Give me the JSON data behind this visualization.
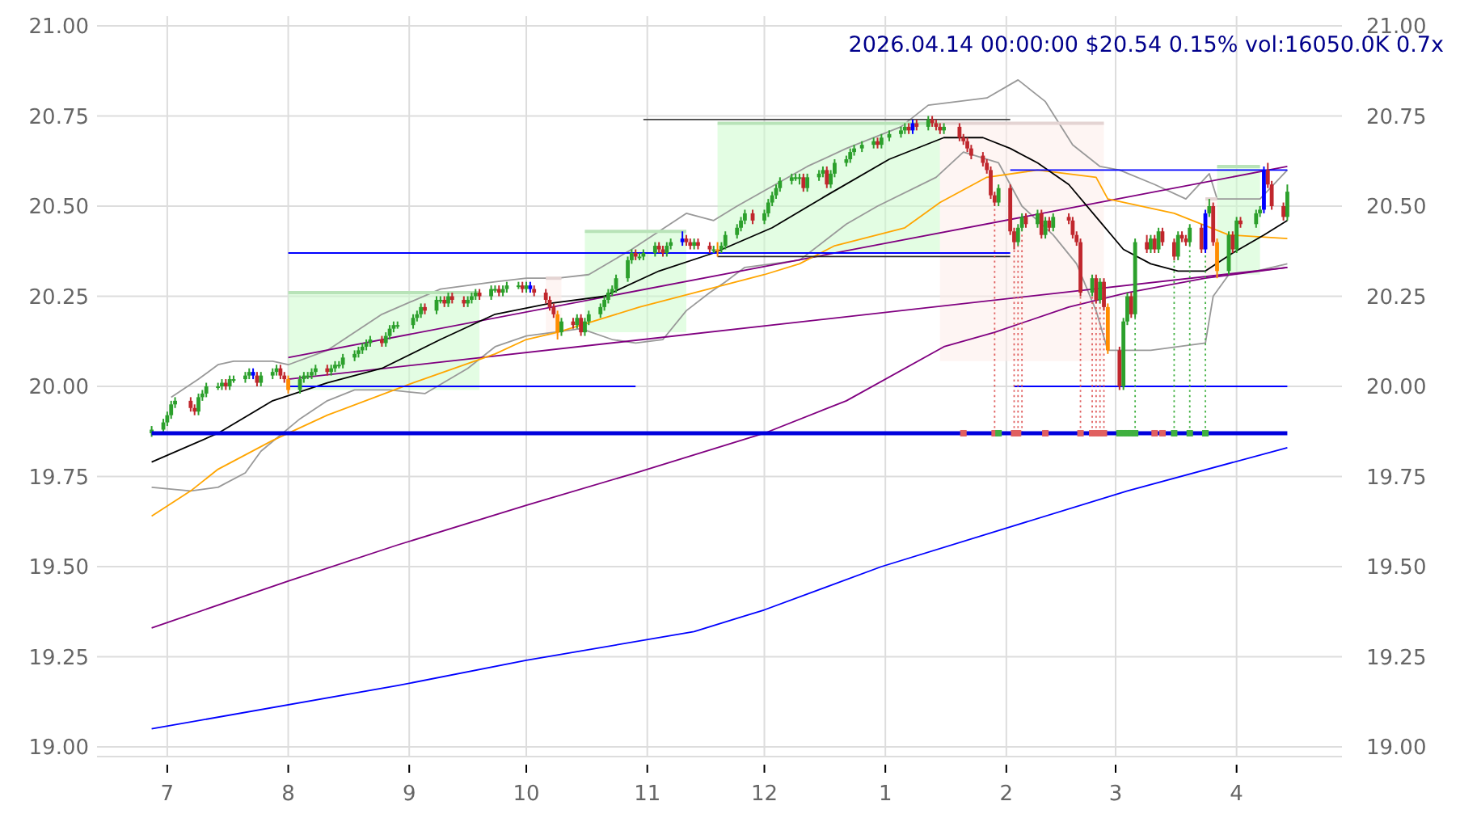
{
  "chart_data": {
    "type": "candlestick",
    "title": "2026.04.14 00:00:00 $20.54 0.15% vol:16050.0K 0.7x",
    "x": [
      "2025-06-27",
      "2025-06-30",
      "2025-07-01",
      "2025-07-02",
      "2025-07-03",
      "2025-07-07",
      "2025-07-08",
      "2025-07-09",
      "2025-07-10",
      "2025-07-11",
      "2025-07-14",
      "2025-07-15",
      "2025-07-16",
      "2025-07-17",
      "2025-07-18",
      "2025-07-21",
      "2025-07-22",
      "2025-07-23",
      "2025-07-24",
      "2025-07-25",
      "2025-07-28",
      "2025-07-29",
      "2025-07-30",
      "2025-07-31",
      "2025-08-01",
      "2025-08-04",
      "2025-08-05",
      "2025-08-06",
      "2025-08-07",
      "2025-08-08",
      "2025-08-11",
      "2025-08-12",
      "2025-08-13",
      "2025-08-14",
      "2025-08-15",
      "2025-08-18",
      "2025-08-19",
      "2025-08-20",
      "2025-08-21",
      "2025-08-22",
      "2025-08-25",
      "2025-08-26",
      "2025-08-27",
      "2025-08-28",
      "2025-08-29",
      "2025-09-02",
      "2025-09-03",
      "2025-09-04",
      "2025-09-05",
      "2025-09-08",
      "2025-09-09",
      "2025-09-10",
      "2025-09-11",
      "2025-09-12",
      "2025-09-15",
      "2025-09-16",
      "2025-09-17",
      "2025-09-18",
      "2025-09-19",
      "2025-09-22",
      "2025-09-23",
      "2025-09-24",
      "2025-09-25",
      "2025-09-26",
      "2025-09-29",
      "2025-09-30",
      "2025-10-01",
      "2025-10-02",
      "2025-10-03",
      "2025-10-06",
      "2025-10-07",
      "2025-10-08",
      "2025-10-09",
      "2025-10-10",
      "2025-10-13",
      "2025-10-14",
      "2025-10-15",
      "2025-10-16",
      "2025-10-17",
      "2025-10-20",
      "2025-10-21",
      "2025-10-22",
      "2025-10-23",
      "2025-10-24",
      "2025-10-27",
      "2025-10-28",
      "2025-10-29",
      "2025-10-30",
      "2025-10-31",
      "2025-11-03",
      "2025-11-04",
      "2025-11-05",
      "2025-11-06",
      "2025-11-07",
      "2025-11-10",
      "2025-11-11",
      "2025-11-12",
      "2025-11-13",
      "2025-11-14",
      "2025-11-17",
      "2025-11-18",
      "2025-11-19",
      "2025-11-20",
      "2025-11-21",
      "2025-11-24",
      "2025-11-25",
      "2025-11-26",
      "2025-11-28",
      "2025-12-01",
      "2025-12-02",
      "2025-12-03",
      "2025-12-04",
      "2025-12-05",
      "2025-12-08",
      "2025-12-09",
      "2025-12-10",
      "2025-12-11",
      "2025-12-12",
      "2025-12-15",
      "2025-12-16",
      "2025-12-17",
      "2025-12-18",
      "2025-12-19",
      "2025-12-22",
      "2025-12-23",
      "2025-12-24",
      "2025-12-26",
      "2025-12-29",
      "2025-12-30",
      "2025-12-31",
      "2026-01-02",
      "2026-01-05",
      "2026-01-06",
      "2026-01-07",
      "2026-01-08",
      "2026-01-09",
      "2026-01-12",
      "2026-01-13",
      "2026-01-14",
      "2026-01-15",
      "2026-01-16",
      "2026-01-20",
      "2026-01-21",
      "2026-01-22",
      "2026-01-23",
      "2026-01-26",
      "2026-01-27",
      "2026-01-28",
      "2026-01-29",
      "2026-01-30",
      "2026-02-02",
      "2026-02-03",
      "2026-02-04",
      "2026-02-05",
      "2026-02-06",
      "2026-02-09",
      "2026-02-10",
      "2026-02-11",
      "2026-02-12",
      "2026-02-13",
      "2026-02-17",
      "2026-02-18",
      "2026-02-19",
      "2026-02-20",
      "2026-02-23",
      "2026-02-24",
      "2026-02-25",
      "2026-02-26",
      "2026-02-27",
      "2026-03-02",
      "2026-03-03",
      "2026-03-04",
      "2026-03-05",
      "2026-03-06",
      "2026-03-09",
      "2026-03-10",
      "2026-03-11",
      "2026-03-12",
      "2026-03-13",
      "2026-03-16",
      "2026-03-17",
      "2026-03-18",
      "2026-03-19",
      "2026-03-20",
      "2026-03-23",
      "2026-03-24",
      "2026-03-25",
      "2026-03-26",
      "2026-03-27",
      "2026-03-30",
      "2026-03-31",
      "2026-04-01",
      "2026-04-02",
      "2026-04-06",
      "2026-04-07",
      "2026-04-08",
      "2026-04-09",
      "2026-04-10",
      "2026-04-13",
      "2026-04-14"
    ],
    "ohlc": [
      [
        19.87,
        19.89,
        19.86,
        19.88
      ],
      [
        19.88,
        19.91,
        19.87,
        19.9
      ],
      [
        19.9,
        19.93,
        19.89,
        19.92
      ],
      [
        19.92,
        19.96,
        19.91,
        19.95
      ],
      [
        19.95,
        19.97,
        19.94,
        19.96
      ],
      [
        19.96,
        19.97,
        19.93,
        19.94
      ],
      [
        19.94,
        19.95,
        19.92,
        19.93
      ],
      [
        19.93,
        19.98,
        19.92,
        19.97
      ],
      [
        19.97,
        19.99,
        19.96,
        19.98
      ],
      [
        19.98,
        20.01,
        19.97,
        20.0
      ],
      [
        20.0,
        20.01,
        19.99,
        20.0
      ],
      [
        20.0,
        20.02,
        19.99,
        20.01
      ],
      [
        20.01,
        20.02,
        19.99,
        20.0
      ],
      [
        20.0,
        20.03,
        19.99,
        20.02
      ],
      [
        20.02,
        20.03,
        20.01,
        20.02
      ],
      [
        20.02,
        20.04,
        20.01,
        20.03
      ],
      [
        20.03,
        20.05,
        20.02,
        20.04
      ],
      [
        20.04,
        20.05,
        20.02,
        20.03
      ],
      [
        20.03,
        20.04,
        20.0,
        20.01
      ],
      [
        20.01,
        20.04,
        20.0,
        20.03
      ],
      [
        20.03,
        20.05,
        20.02,
        20.04
      ],
      [
        20.04,
        20.06,
        20.03,
        20.05
      ],
      [
        20.05,
        20.06,
        20.02,
        20.03
      ],
      [
        20.03,
        20.04,
        20.01,
        20.02
      ],
      [
        20.02,
        20.03,
        19.98,
        19.99
      ],
      [
        19.99,
        20.03,
        19.98,
        20.02
      ],
      [
        20.02,
        20.04,
        20.01,
        20.03
      ],
      [
        20.03,
        20.04,
        20.02,
        20.03
      ],
      [
        20.03,
        20.05,
        20.02,
        20.04
      ],
      [
        20.04,
        20.06,
        20.03,
        20.05
      ],
      [
        20.05,
        20.06,
        20.03,
        20.04
      ],
      [
        20.04,
        20.06,
        20.03,
        20.05
      ],
      [
        20.05,
        20.07,
        20.04,
        20.06
      ],
      [
        20.06,
        20.07,
        20.05,
        20.06
      ],
      [
        20.06,
        20.09,
        20.05,
        20.08
      ],
      [
        20.08,
        20.1,
        20.07,
        20.09
      ],
      [
        20.09,
        20.11,
        20.08,
        20.1
      ],
      [
        20.1,
        20.12,
        20.09,
        20.11
      ],
      [
        20.11,
        20.13,
        20.1,
        20.12
      ],
      [
        20.12,
        20.14,
        20.11,
        20.13
      ],
      [
        20.13,
        20.14,
        20.11,
        20.12
      ],
      [
        20.12,
        20.15,
        20.11,
        20.14
      ],
      [
        20.14,
        20.17,
        20.13,
        20.16
      ],
      [
        20.16,
        20.18,
        20.15,
        20.17
      ],
      [
        20.17,
        20.18,
        20.16,
        20.17
      ],
      [
        20.17,
        20.2,
        20.16,
        20.19
      ],
      [
        20.19,
        20.21,
        20.18,
        20.2
      ],
      [
        20.2,
        20.23,
        20.19,
        20.22
      ],
      [
        20.22,
        20.23,
        20.2,
        20.21
      ],
      [
        20.21,
        20.25,
        20.2,
        20.24
      ],
      [
        20.24,
        20.25,
        20.23,
        20.24
      ],
      [
        20.24,
        20.25,
        20.22,
        20.23
      ],
      [
        20.23,
        20.26,
        20.22,
        20.25
      ],
      [
        20.25,
        20.26,
        20.23,
        20.24
      ],
      [
        20.24,
        20.25,
        20.22,
        20.23
      ],
      [
        20.23,
        20.25,
        20.22,
        20.24
      ],
      [
        20.24,
        20.26,
        20.23,
        20.25
      ],
      [
        20.25,
        20.27,
        20.24,
        20.26
      ],
      [
        20.26,
        20.27,
        20.24,
        20.25
      ],
      [
        20.25,
        20.28,
        20.24,
        20.27
      ],
      [
        20.27,
        20.28,
        20.26,
        20.27
      ],
      [
        20.27,
        20.28,
        20.25,
        20.26
      ],
      [
        20.26,
        20.28,
        20.25,
        20.27
      ],
      [
        20.27,
        20.29,
        20.26,
        20.28
      ],
      [
        20.28,
        20.29,
        20.27,
        20.28
      ],
      [
        20.28,
        20.29,
        20.26,
        20.27
      ],
      [
        20.27,
        20.29,
        20.26,
        20.28
      ],
      [
        20.28,
        20.29,
        20.26,
        20.27
      ],
      [
        20.27,
        20.28,
        20.25,
        20.26
      ],
      [
        20.26,
        20.27,
        20.23,
        20.24
      ],
      [
        20.24,
        20.25,
        20.21,
        20.22
      ],
      [
        20.22,
        20.23,
        20.19,
        20.2
      ],
      [
        20.2,
        20.21,
        20.13,
        20.15
      ],
      [
        20.15,
        20.19,
        20.14,
        20.18
      ],
      [
        20.18,
        20.19,
        20.16,
        20.17
      ],
      [
        20.17,
        20.2,
        20.16,
        20.19
      ],
      [
        20.19,
        20.2,
        20.14,
        20.15
      ],
      [
        20.15,
        20.19,
        20.14,
        20.18
      ],
      [
        20.18,
        20.21,
        20.17,
        20.2
      ],
      [
        20.2,
        20.23,
        20.19,
        20.22
      ],
      [
        20.22,
        20.25,
        20.21,
        20.24
      ],
      [
        20.24,
        20.27,
        20.23,
        20.26
      ],
      [
        20.26,
        20.28,
        20.25,
        20.27
      ],
      [
        20.27,
        20.31,
        20.26,
        20.3
      ],
      [
        20.3,
        20.36,
        20.29,
        20.35
      ],
      [
        20.35,
        20.38,
        20.34,
        20.37
      ],
      [
        20.37,
        20.38,
        20.35,
        20.36
      ],
      [
        20.36,
        20.37,
        20.35,
        20.36
      ],
      [
        20.36,
        20.38,
        20.35,
        20.37
      ],
      [
        20.37,
        20.4,
        20.36,
        20.39
      ],
      [
        20.39,
        20.4,
        20.37,
        20.38
      ],
      [
        20.38,
        20.39,
        20.36,
        20.37
      ],
      [
        20.37,
        20.4,
        20.36,
        20.39
      ],
      [
        20.39,
        20.41,
        20.38,
        20.4
      ],
      [
        20.4,
        20.43,
        20.39,
        20.41
      ],
      [
        20.41,
        20.42,
        20.39,
        20.4
      ],
      [
        20.4,
        20.41,
        20.38,
        20.39
      ],
      [
        20.39,
        20.41,
        20.38,
        20.4
      ],
      [
        20.4,
        20.41,
        20.38,
        20.39
      ],
      [
        20.39,
        20.4,
        20.37,
        20.38
      ],
      [
        20.38,
        20.39,
        20.37,
        20.38
      ],
      [
        20.38,
        20.4,
        20.36,
        20.38
      ],
      [
        20.38,
        20.4,
        20.37,
        20.39
      ],
      [
        20.39,
        20.43,
        20.38,
        20.42
      ],
      [
        20.42,
        20.45,
        20.41,
        20.44
      ],
      [
        20.44,
        20.47,
        20.43,
        20.46
      ],
      [
        20.46,
        20.49,
        20.45,
        20.48
      ],
      [
        20.48,
        20.49,
        20.45,
        20.46
      ],
      [
        20.46,
        20.49,
        20.45,
        20.48
      ],
      [
        20.48,
        20.52,
        20.47,
        20.51
      ],
      [
        20.51,
        20.54,
        20.5,
        20.53
      ],
      [
        20.53,
        20.56,
        20.52,
        20.55
      ],
      [
        20.55,
        20.58,
        20.54,
        20.57
      ],
      [
        20.57,
        20.59,
        20.56,
        20.58
      ],
      [
        20.58,
        20.59,
        20.57,
        20.58
      ],
      [
        20.58,
        20.59,
        20.56,
        20.58
      ],
      [
        20.58,
        20.59,
        20.54,
        20.55
      ],
      [
        20.55,
        20.59,
        20.54,
        20.58
      ],
      [
        20.58,
        20.6,
        20.57,
        20.59
      ],
      [
        20.59,
        20.61,
        20.58,
        20.6
      ],
      [
        20.6,
        20.61,
        20.55,
        20.56
      ],
      [
        20.56,
        20.6,
        20.55,
        20.59
      ],
      [
        20.59,
        20.63,
        20.58,
        20.62
      ],
      [
        20.62,
        20.64,
        20.61,
        20.63
      ],
      [
        20.63,
        20.66,
        20.62,
        20.65
      ],
      [
        20.65,
        20.67,
        20.64,
        20.66
      ],
      [
        20.66,
        20.68,
        20.65,
        20.67
      ],
      [
        20.67,
        20.69,
        20.66,
        20.68
      ],
      [
        20.68,
        20.69,
        20.66,
        20.67
      ],
      [
        20.67,
        20.7,
        20.66,
        20.69
      ],
      [
        20.69,
        20.71,
        20.68,
        20.7
      ],
      [
        20.7,
        20.72,
        20.69,
        20.71
      ],
      [
        20.71,
        20.73,
        20.7,
        20.72
      ],
      [
        20.72,
        20.73,
        20.7,
        20.71
      ],
      [
        20.71,
        20.74,
        20.7,
        20.73
      ],
      [
        20.73,
        20.74,
        20.71,
        20.72
      ],
      [
        20.72,
        20.75,
        20.71,
        20.74
      ],
      [
        20.74,
        20.75,
        20.72,
        20.73
      ],
      [
        20.73,
        20.74,
        20.71,
        20.72
      ],
      [
        20.72,
        20.73,
        20.7,
        20.71
      ],
      [
        20.71,
        20.73,
        20.7,
        20.72
      ],
      [
        20.72,
        20.73,
        20.68,
        20.69
      ],
      [
        20.69,
        20.7,
        20.67,
        20.68
      ],
      [
        20.68,
        20.69,
        20.65,
        20.66
      ],
      [
        20.66,
        20.67,
        20.63,
        20.64
      ],
      [
        20.64,
        20.65,
        20.61,
        20.62
      ],
      [
        20.62,
        20.63,
        20.59,
        20.6
      ],
      [
        20.6,
        20.61,
        20.52,
        20.53
      ],
      [
        20.53,
        20.54,
        20.5,
        20.51
      ],
      [
        20.51,
        20.56,
        20.5,
        20.55
      ],
      [
        20.55,
        20.56,
        20.42,
        20.43
      ],
      [
        20.43,
        20.44,
        20.38,
        20.4
      ],
      [
        20.4,
        20.45,
        20.39,
        20.44
      ],
      [
        20.44,
        20.48,
        20.43,
        20.47
      ],
      [
        20.47,
        20.48,
        20.44,
        20.45
      ],
      [
        20.45,
        20.49,
        20.44,
        20.48
      ],
      [
        20.48,
        20.49,
        20.41,
        20.42
      ],
      [
        20.42,
        20.47,
        20.41,
        20.46
      ],
      [
        20.46,
        20.47,
        20.43,
        20.44
      ],
      [
        20.44,
        20.48,
        20.43,
        20.47
      ],
      [
        20.47,
        20.48,
        20.45,
        20.46
      ],
      [
        20.46,
        20.47,
        20.41,
        20.42
      ],
      [
        20.42,
        20.43,
        20.39,
        20.4
      ],
      [
        20.4,
        20.41,
        20.25,
        20.26
      ],
      [
        20.26,
        20.31,
        20.25,
        20.3
      ],
      [
        20.3,
        20.31,
        20.23,
        20.24
      ],
      [
        20.24,
        20.3,
        20.23,
        20.29
      ],
      [
        20.29,
        20.3,
        20.21,
        20.22
      ],
      [
        20.22,
        20.23,
        20.09,
        20.1
      ],
      [
        20.1,
        20.11,
        19.99,
        20.0
      ],
      [
        20.0,
        20.19,
        19.99,
        20.18
      ],
      [
        20.18,
        20.26,
        20.17,
        20.25
      ],
      [
        20.25,
        20.26,
        20.19,
        20.2
      ],
      [
        20.2,
        20.41,
        20.19,
        20.4
      ],
      [
        20.4,
        20.42,
        20.37,
        20.38
      ],
      [
        20.38,
        20.42,
        20.37,
        20.41
      ],
      [
        20.41,
        20.42,
        20.37,
        20.38
      ],
      [
        20.38,
        20.44,
        20.37,
        20.43
      ],
      [
        20.43,
        20.44,
        20.39,
        20.4
      ],
      [
        20.4,
        20.41,
        20.35,
        20.36
      ],
      [
        20.36,
        20.43,
        20.35,
        20.42
      ],
      [
        20.42,
        20.43,
        20.4,
        20.41
      ],
      [
        20.41,
        20.42,
        20.39,
        20.4
      ],
      [
        20.4,
        20.45,
        20.39,
        20.44
      ],
      [
        20.44,
        20.45,
        20.37,
        20.38
      ],
      [
        20.38,
        20.49,
        20.37,
        20.48
      ],
      [
        20.48,
        20.52,
        20.47,
        20.5
      ],
      [
        20.5,
        20.51,
        20.39,
        20.4
      ],
      [
        20.4,
        20.41,
        20.3,
        20.32
      ],
      [
        20.32,
        20.43,
        20.31,
        20.42
      ],
      [
        20.42,
        20.43,
        20.37,
        20.38
      ],
      [
        20.38,
        20.47,
        20.37,
        20.46
      ],
      [
        20.46,
        20.47,
        20.44,
        20.45
      ],
      [
        20.45,
        20.49,
        20.44,
        20.48
      ],
      [
        20.48,
        20.5,
        20.47,
        20.49
      ],
      [
        20.49,
        20.61,
        20.48,
        20.6
      ],
      [
        20.6,
        20.62,
        20.55,
        20.56
      ],
      [
        20.56,
        20.57,
        20.49,
        20.5
      ],
      [
        20.5,
        20.51,
        20.46,
        20.47
      ],
      [
        20.47,
        20.56,
        20.46,
        20.54
      ]
    ],
    "colors": [
      "#2ca02c",
      "#2ca02c",
      "#2ca02c",
      "#2ca02c",
      "#2ca02c",
      "#c0272d",
      "#c0272d",
      "#2ca02c",
      "#2ca02c",
      "#2ca02c",
      "#2ca02c",
      "#2ca02c",
      "#c0272d",
      "#2ca02c",
      "#2ca02c",
      "#2ca02c",
      "#2ca02c",
      "#0000ff",
      "#c0272d",
      "#2ca02c",
      "#2ca02c",
      "#2ca02c",
      "#c0272d",
      "#c0272d",
      "#ff8c00",
      "#2ca02c",
      "#2ca02c",
      "#2ca02c",
      "#2ca02c",
      "#2ca02c",
      "#c0272d",
      "#2ca02c",
      "#2ca02c",
      "#2ca02c",
      "#2ca02c",
      "#2ca02c",
      "#2ca02c",
      "#2ca02c",
      "#2ca02c",
      "#2ca02c",
      "#c0272d",
      "#2ca02c",
      "#2ca02c",
      "#2ca02c",
      "#2ca02c",
      "#2ca02c",
      "#2ca02c",
      "#2ca02c",
      "#c0272d",
      "#2ca02c",
      "#2ca02c",
      "#c0272d",
      "#2ca02c",
      "#c0272d",
      "#c0272d",
      "#2ca02c",
      "#2ca02c",
      "#2ca02c",
      "#c0272d",
      "#2ca02c",
      "#2ca02c",
      "#c0272d",
      "#2ca02c",
      "#2ca02c",
      "#2ca02c",
      "#c0272d",
      "#2ca02c",
      "#0000ff",
      "#c0272d",
      "#c0272d",
      "#c0272d",
      "#c0272d",
      "#ff8c00",
      "#2ca02c",
      "#c0272d",
      "#2ca02c",
      "#c0272d",
      "#2ca02c",
      "#2ca02c",
      "#2ca02c",
      "#2ca02c",
      "#2ca02c",
      "#2ca02c",
      "#2ca02c",
      "#2ca02c",
      "#2ca02c",
      "#c0272d",
      "#2ca02c",
      "#2ca02c",
      "#2ca02c",
      "#c0272d",
      "#c0272d",
      "#2ca02c",
      "#2ca02c",
      "#0000ff",
      "#c0272d",
      "#c0272d",
      "#2ca02c",
      "#c0272d",
      "#c0272d",
      "#2ca02c",
      "#ff8c00",
      "#2ca02c",
      "#2ca02c",
      "#2ca02c",
      "#2ca02c",
      "#2ca02c",
      "#c0272d",
      "#2ca02c",
      "#2ca02c",
      "#2ca02c",
      "#2ca02c",
      "#2ca02c",
      "#2ca02c",
      "#2ca02c",
      "#2ca02c",
      "#c0272d",
      "#2ca02c",
      "#2ca02c",
      "#2ca02c",
      "#c0272d",
      "#2ca02c",
      "#2ca02c",
      "#2ca02c",
      "#2ca02c",
      "#2ca02c",
      "#2ca02c",
      "#2ca02c",
      "#c0272d",
      "#2ca02c",
      "#2ca02c",
      "#2ca02c",
      "#2ca02c",
      "#c0272d",
      "#0000ff",
      "#c0272d",
      "#2ca02c",
      "#c0272d",
      "#c0272d",
      "#c0272d",
      "#2ca02c",
      "#c0272d",
      "#c0272d",
      "#c0272d",
      "#c0272d",
      "#c0272d",
      "#c0272d",
      "#c0272d",
      "#c0272d",
      "#2ca02c",
      "#c0272d",
      "#c0272d",
      "#2ca02c",
      "#2ca02c",
      "#c0272d",
      "#2ca02c",
      "#c0272d",
      "#2ca02c",
      "#c0272d",
      "#2ca02c",
      "#c0272d",
      "#c0272d",
      "#c0272d",
      "#c0272d",
      "#2ca02c",
      "#c0272d",
      "#2ca02c",
      "#c0272d",
      "#ff8c00",
      "#c0272d",
      "#2ca02c",
      "#2ca02c",
      "#c0272d",
      "#2ca02c",
      "#c0272d",
      "#2ca02c",
      "#c0272d",
      "#2ca02c",
      "#c0272d",
      "#c0272d",
      "#2ca02c",
      "#c0272d",
      "#c0272d",
      "#2ca02c",
      "#c0272d",
      "#0000ff",
      "#2ca02c",
      "#c0272d",
      "#ff8c00",
      "#2ca02c",
      "#c0272d",
      "#2ca02c",
      "#c0272d",
      "#2ca02c",
      "#2ca02c",
      "#0000ff",
      "#c0272d",
      "#c0272d",
      "#c0272d",
      "#2ca02c"
    ],
    "series": [
      {
        "type": "line",
        "color": "#ccfccc",
        "x": [
          "2025-08-01",
          "2025-09-19"
        ],
        "values": [
          20.26,
          20.26
        ],
        "lower": [
          19.99,
          19.99
        ],
        "upper": [
          20.26,
          20.26
        ]
      },
      {
        "type": "line",
        "color": "#fdecea",
        "x": [
          "2025-10-06",
          "2025-10-10"
        ],
        "values": [
          20.3,
          20.3
        ],
        "lower": [
          20.14,
          20.14
        ],
        "upper": [
          20.3,
          20.3
        ]
      },
      {
        "type": "line",
        "color": "#ccfccc",
        "x": [
          "2025-10-16",
          "2025-11-11"
        ],
        "values": [
          20.43,
          20.43
        ],
        "lower": [
          20.15,
          20.15
        ],
        "upper": [
          20.43,
          20.43
        ]
      },
      {
        "type": "line",
        "color": "#ccfccc",
        "x": [
          "2025-11-19",
          "2026-01-15"
        ],
        "values": [
          20.73,
          20.73
        ],
        "lower": [
          20.37,
          20.37
        ],
        "upper": [
          20.73,
          20.73
        ]
      },
      {
        "type": "line",
        "color": "#fdecea",
        "x": [
          "2026-01-15",
          "2026-02-26"
        ],
        "values": [
          20.73,
          20.73
        ],
        "lower": [
          20.07,
          20.07
        ],
        "upper": [
          20.73,
          20.73
        ]
      },
      {
        "type": "line",
        "color": "#fdecea",
        "x": [
          "2026-03-24",
          "2026-03-27"
        ],
        "values": [
          20.52,
          20.52
        ],
        "lower": [
          20.31,
          20.31
        ],
        "upper": [
          20.52,
          20.52
        ]
      },
      {
        "type": "line",
        "color": "#ccfccc",
        "x": [
          "2026-03-27",
          "2026-04-07"
        ],
        "values": [
          20.61,
          20.61
        ],
        "lower": [
          20.31,
          20.31
        ],
        "upper": [
          20.61,
          20.61
        ]
      },
      {
        "type": "line",
        "color": "#999999",
        "x": [
          "2025-07-02",
          "2025-07-09",
          "2025-07-14",
          "2025-07-18",
          "2025-07-28",
          "2025-08-01",
          "2025-08-11",
          "2025-08-25",
          "2025-09-09",
          "2025-09-23",
          "2025-10-01",
          "2025-10-09",
          "2025-10-17",
          "2025-10-28",
          "2025-11-11",
          "2025-11-18",
          "2025-11-24",
          "2025-12-12",
          "2025-12-22",
          "2026-01-05",
          "2026-01-12",
          "2026-01-27",
          "2026-02-04",
          "2026-02-11",
          "2026-02-18",
          "2026-02-25",
          "2026-03-02",
          "2026-03-11",
          "2026-03-19",
          "2026-03-25",
          "2026-03-27",
          "2026-04-07",
          "2026-04-14"
        ],
        "values": [
          19.97,
          20.02,
          20.06,
          20.07,
          20.07,
          20.06,
          20.1,
          20.2,
          20.27,
          20.29,
          20.3,
          20.3,
          20.31,
          20.38,
          20.48,
          20.46,
          20.5,
          20.61,
          20.66,
          20.72,
          20.78,
          20.8,
          20.85,
          20.79,
          20.67,
          20.61,
          20.6,
          20.56,
          20.52,
          20.59,
          20.52,
          20.52,
          20.6
        ]
      },
      {
        "type": "line",
        "color": "#999999",
        "x": [
          "2025-06-27",
          "2025-07-07",
          "2025-07-14",
          "2025-07-21",
          "2025-07-25",
          "2025-08-04",
          "2025-08-11",
          "2025-08-18",
          "2025-08-27",
          "2025-09-05",
          "2025-09-16",
          "2025-09-23",
          "2025-10-01",
          "2025-10-15",
          "2025-10-23",
          "2025-10-29",
          "2025-11-05",
          "2025-11-11",
          "2025-11-17",
          "2025-11-21",
          "2025-11-26",
          "2025-12-10",
          "2025-12-22",
          "2025-12-30",
          "2026-01-14",
          "2026-01-21",
          "2026-01-30",
          "2026-02-05",
          "2026-02-13",
          "2026-02-19",
          "2026-02-24",
          "2026-02-27",
          "2026-03-10",
          "2026-03-24",
          "2026-03-26",
          "2026-03-30",
          "2026-04-06",
          "2026-04-14"
        ],
        "values": [
          19.72,
          19.71,
          19.72,
          19.76,
          19.82,
          19.91,
          19.96,
          19.99,
          19.99,
          19.98,
          20.05,
          20.11,
          20.14,
          20.16,
          20.13,
          20.12,
          20.13,
          20.21,
          20.26,
          20.29,
          20.33,
          20.35,
          20.45,
          20.5,
          20.58,
          20.65,
          20.62,
          20.5,
          20.42,
          20.34,
          20.21,
          20.1,
          20.1,
          20.12,
          20.25,
          20.31,
          20.32,
          20.34
        ]
      },
      {
        "type": "line",
        "color": "#0000ff",
        "x": [
          "2025-06-27",
          "2025-08-29",
          "2025-10-01",
          "2025-11-13",
          "2025-12-01",
          "2025-12-31",
          "2026-02-02",
          "2026-03-04",
          "2026-04-14"
        ],
        "values": [
          19.05,
          19.17,
          19.24,
          19.32,
          19.38,
          19.5,
          19.61,
          19.71,
          19.83
        ]
      },
      {
        "type": "line",
        "color": "#800080",
        "x": [
          "2025-06-27",
          "2025-08-01",
          "2025-08-29",
          "2025-10-01",
          "2025-10-29",
          "2025-12-01",
          "2025-12-22",
          "2026-01-16",
          "2026-01-29",
          "2026-02-17",
          "2026-03-04",
          "2026-03-24",
          "2026-04-14"
        ],
        "values": [
          19.33,
          19.46,
          19.56,
          19.67,
          19.76,
          19.87,
          19.96,
          20.11,
          20.15,
          20.22,
          20.26,
          20.3,
          20.33
        ]
      },
      {
        "type": "line",
        "color": "#800080",
        "x": [
          "2025-08-01",
          "2026-04-14"
        ],
        "values": [
          20.08,
          20.61
        ]
      },
      {
        "type": "line",
        "color": "#800080",
        "x": [
          "2025-08-01",
          "2026-04-14"
        ],
        "values": [
          20.02,
          20.33
        ]
      },
      {
        "type": "line",
        "color": "#ffa500",
        "x": [
          "2025-06-27",
          "2025-07-07",
          "2025-07-14",
          "2025-07-28",
          "2025-08-11",
          "2025-09-02",
          "2025-09-23",
          "2025-10-01",
          "2025-10-09",
          "2025-10-30",
          "2025-12-01",
          "2025-12-10",
          "2025-12-19",
          "2026-01-06",
          "2026-01-15",
          "2026-01-27",
          "2026-02-09",
          "2026-02-24",
          "2026-02-27",
          "2026-03-16",
          "2026-03-30",
          "2026-04-14"
        ],
        "values": [
          19.64,
          19.71,
          19.77,
          19.85,
          19.92,
          20.01,
          20.09,
          20.13,
          20.15,
          20.22,
          20.31,
          20.34,
          20.39,
          20.44,
          20.51,
          20.58,
          20.6,
          20.58,
          20.52,
          20.48,
          20.42,
          20.41
        ]
      },
      {
        "type": "line",
        "color": "#000000",
        "x": [
          "2025-06-27",
          "2025-07-14",
          "2025-07-28",
          "2025-08-11",
          "2025-08-25",
          "2025-09-09",
          "2025-09-23",
          "2025-10-07",
          "2025-10-21",
          "2025-11-04",
          "2025-11-18",
          "2025-12-03",
          "2025-12-17",
          "2026-01-02",
          "2026-01-16",
          "2026-01-26",
          "2026-02-02",
          "2026-02-09",
          "2026-02-17",
          "2026-02-24",
          "2026-03-03",
          "2026-03-10",
          "2026-03-17",
          "2026-03-24",
          "2026-03-31",
          "2026-04-08",
          "2026-04-14"
        ],
        "values": [
          19.79,
          19.87,
          19.96,
          20.01,
          20.05,
          20.13,
          20.2,
          20.23,
          20.25,
          20.32,
          20.37,
          20.44,
          20.53,
          20.63,
          20.69,
          20.69,
          20.66,
          20.62,
          20.56,
          20.47,
          20.38,
          20.34,
          20.32,
          20.32,
          20.37,
          20.42,
          20.46
        ]
      },
      {
        "type": "line",
        "color": "#0000ff",
        "x": [
          "2025-08-01",
          "2026-02-02"
        ],
        "values": [
          20.37,
          20.37
        ]
      },
      {
        "type": "line",
        "color": "#0000ff",
        "x": [
          "2025-08-01",
          "2025-10-29"
        ],
        "values": [
          20.0,
          20.0
        ]
      },
      {
        "type": "line",
        "color": "#0000ff",
        "x": [
          "2026-02-02",
          "2026-04-14"
        ],
        "values": [
          20.6,
          20.6
        ]
      },
      {
        "type": "line",
        "color": "#0000ff",
        "x": [
          "2026-02-03",
          "2026-04-14"
        ],
        "values": [
          20.0,
          20.0
        ]
      },
      {
        "type": "line",
        "color": "#444444",
        "x": [
          "2025-10-31",
          "2026-02-02"
        ],
        "values": [
          20.74,
          20.74
        ]
      },
      {
        "type": "line",
        "color": "#222222",
        "x": [
          "2025-11-19",
          "2026-02-02"
        ],
        "values": [
          20.36,
          20.36
        ]
      },
      {
        "type": "line",
        "color": "#e06060",
        "line_style": "dotted",
        "x": [
          "2026-01-29",
          "2026-01-29"
        ],
        "values": [
          19.87,
          20.5
        ]
      },
      {
        "type": "line",
        "color": "#e06060",
        "line_style": "dotted",
        "x": [
          "2026-02-03",
          "2026-02-03"
        ],
        "values": [
          19.87,
          20.38
        ]
      },
      {
        "type": "line",
        "color": "#e06060",
        "line_style": "dotted",
        "x": [
          "2026-02-04",
          "2026-02-04"
        ],
        "values": [
          19.87,
          20.39
        ]
      },
      {
        "type": "line",
        "color": "#e06060",
        "line_style": "dotted",
        "x": [
          "2026-02-05",
          "2026-02-05"
        ],
        "values": [
          19.87,
          20.43
        ]
      },
      {
        "type": "line",
        "color": "#e06060",
        "line_style": "dotted",
        "x": [
          "2026-02-20",
          "2026-02-20"
        ],
        "values": [
          19.87,
          20.25
        ]
      },
      {
        "type": "line",
        "color": "#e06060",
        "line_style": "dotted",
        "x": [
          "2026-02-23",
          "2026-02-23"
        ],
        "values": [
          19.87,
          20.25
        ]
      },
      {
        "type": "line",
        "color": "#e06060",
        "line_style": "dotted",
        "x": [
          "2026-02-24",
          "2026-02-24"
        ],
        "values": [
          19.87,
          20.23
        ]
      },
      {
        "type": "line",
        "color": "#e06060",
        "line_style": "dotted",
        "x": [
          "2026-02-25",
          "2026-02-25"
        ],
        "values": [
          19.87,
          20.23
        ]
      },
      {
        "type": "line",
        "color": "#e06060",
        "line_style": "dotted",
        "x": [
          "2026-02-26",
          "2026-02-26"
        ],
        "values": [
          19.87,
          20.21
        ]
      },
      {
        "type": "line",
        "color": "#40b040",
        "line_style": "dotted",
        "x": [
          "2026-03-06",
          "2026-03-06"
        ],
        "values": [
          19.87,
          20.19
        ]
      },
      {
        "type": "line",
        "color": "#40b040",
        "line_style": "dotted",
        "x": [
          "2026-03-16",
          "2026-03-16"
        ],
        "values": [
          19.87,
          20.35
        ]
      },
      {
        "type": "line",
        "color": "#40b040",
        "line_style": "dotted",
        "x": [
          "2026-03-20",
          "2026-03-20"
        ],
        "values": [
          19.87,
          20.39
        ]
      },
      {
        "type": "line",
        "color": "#40b040",
        "line_style": "dotted",
        "x": [
          "2026-03-24",
          "2026-03-24"
        ],
        "values": [
          19.87,
          20.37
        ]
      },
      {
        "type": "scatter",
        "color": "#e06060",
        "marker": "square",
        "x": [
          "2026-01-21",
          "2026-01-29",
          "2026-02-03",
          "2026-02-04",
          "2026-02-11",
          "2026-02-20",
          "2026-02-23",
          "2026-02-24",
          "2026-02-25",
          "2026-02-26",
          "2026-03-11",
          "2026-03-13"
        ],
        "values": [
          19.87,
          19.87,
          19.87,
          19.87,
          19.87,
          19.87,
          19.87,
          19.87,
          19.87,
          19.87,
          19.87,
          19.87
        ]
      },
      {
        "type": "scatter",
        "color": "#40b040",
        "marker": "square",
        "x": [
          "2026-01-30",
          "2026-03-02",
          "2026-03-03",
          "2026-03-04",
          "2026-03-05",
          "2026-03-06",
          "2026-03-16",
          "2026-03-20",
          "2026-03-24"
        ],
        "values": [
          19.87,
          19.87,
          19.87,
          19.87,
          19.87,
          19.87,
          19.87,
          19.87,
          19.87
        ]
      }
    ],
    "ref_lines": [
      {
        "axis": "y",
        "value": 19.87,
        "color": "#0000dd"
      }
    ],
    "xlim": [
      "2025-06-13",
      "2026-04-28"
    ],
    "xticks": [
      {
        "value": "2025-07-01",
        "label": "7"
      },
      {
        "value": "2025-08-01",
        "label": "8"
      },
      {
        "value": "2025-09-01",
        "label": "9"
      },
      {
        "value": "2025-10-01",
        "label": "10"
      },
      {
        "value": "2025-11-01",
        "label": "11"
      },
      {
        "value": "2025-12-01",
        "label": "12"
      },
      {
        "value": "2026-01-01",
        "label": "1"
      },
      {
        "value": "2026-02-01",
        "label": "2"
      },
      {
        "value": "2026-03-01",
        "label": "3"
      },
      {
        "value": "2026-04-01",
        "label": "4"
      }
    ],
    "ylim": [
      19,
      21
    ],
    "yticks": [
      {
        "value": 19,
        "label": "19.00"
      },
      {
        "value": 19.25,
        "label": "19.25"
      },
      {
        "value": 19.5,
        "label": "19.50"
      },
      {
        "value": 19.75,
        "label": "19.75"
      },
      {
        "value": 20,
        "label": "20.00"
      },
      {
        "value": 20.25,
        "label": "20.25"
      },
      {
        "value": 20.5,
        "label": "20.50"
      },
      {
        "value": 20.75,
        "label": "20.75"
      },
      {
        "value": 21,
        "label": "21.00"
      }
    ],
    "y2lim": [
      19,
      21
    ],
    "y2ticks": [
      {
        "value": 19,
        "label": "19.00"
      },
      {
        "value": 19.25,
        "label": "19.25"
      },
      {
        "value": 19.5,
        "label": "19.50"
      },
      {
        "value": 19.75,
        "label": "19.75"
      },
      {
        "value": 20,
        "label": "20.00"
      },
      {
        "value": 20.25,
        "label": "20.25"
      },
      {
        "value": 20.5,
        "label": "20.50"
      },
      {
        "value": 20.75,
        "label": "20.75"
      },
      {
        "value": 21,
        "label": "21.00"
      }
    ],
    "grid": true
  }
}
